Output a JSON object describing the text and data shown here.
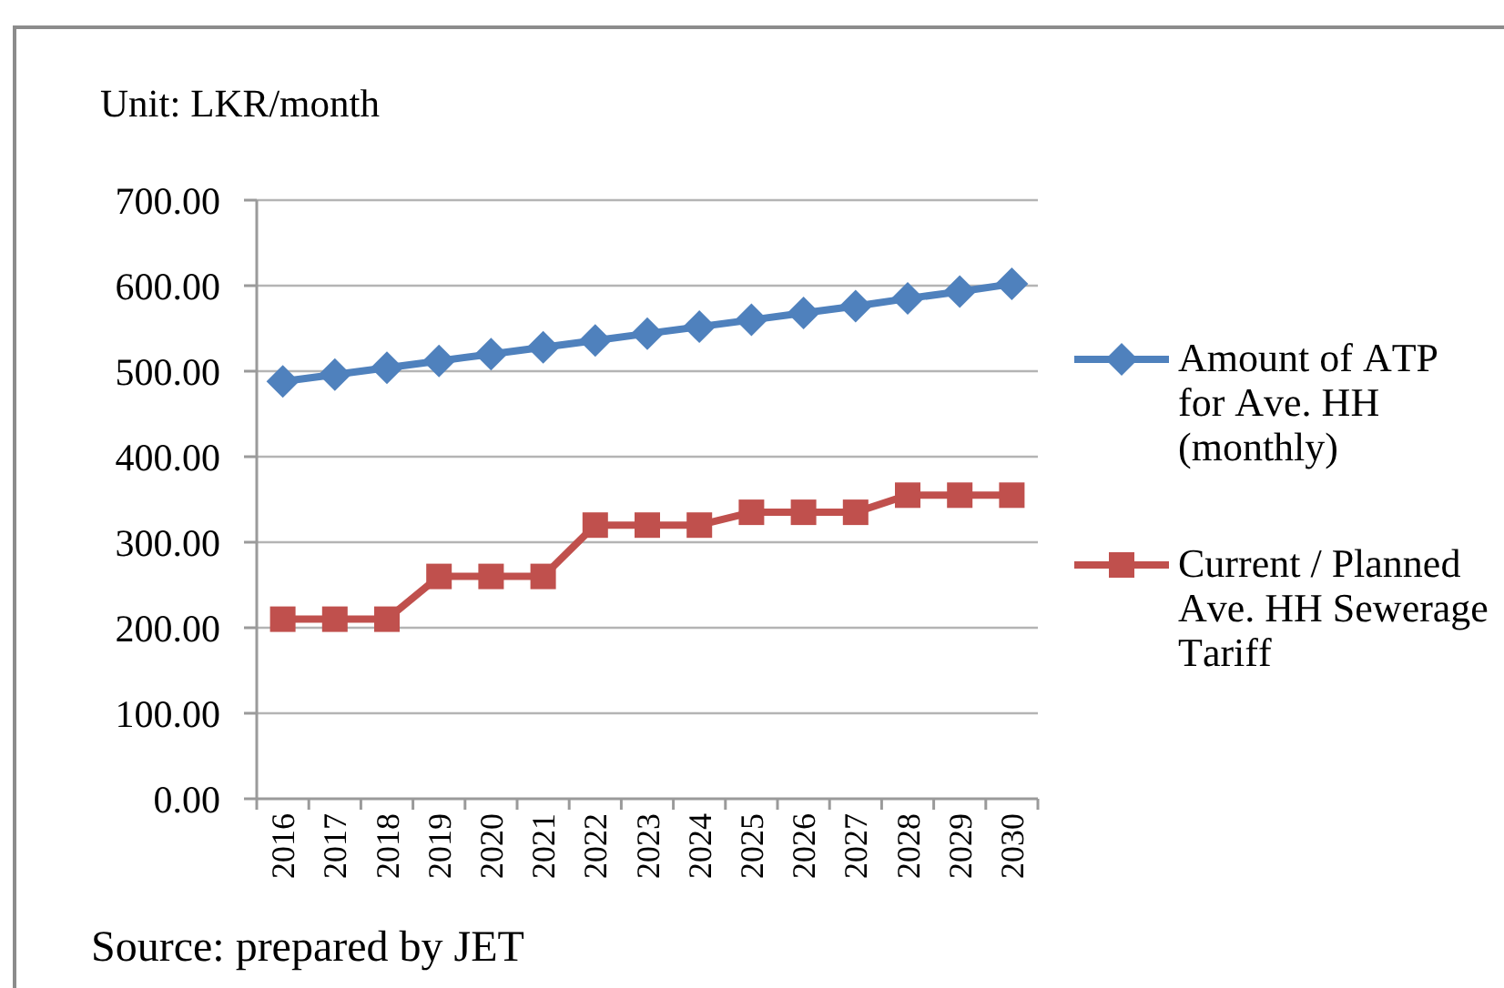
{
  "chart_data": {
    "type": "line",
    "ylabel": "Unit: LKR/month",
    "annotations": [
      "Source: prepared by JET"
    ],
    "categories": [
      "2016",
      "2017",
      "2018",
      "2019",
      "2020",
      "2021",
      "2022",
      "2023",
      "2024",
      "2025",
      "2026",
      "2027",
      "2028",
      "2029",
      "2030"
    ],
    "series": [
      {
        "name": "Amount of ATP for Ave. HH (monthly)",
        "color": "#4f81bd",
        "marker": "diamond",
        "values": [
          488,
          496,
          504,
          512,
          520,
          528,
          536,
          544,
          552,
          560,
          568,
          576,
          585,
          593,
          602
        ]
      },
      {
        "name": "Current / Planned Ave. HH Sewerage Tariff",
        "color": "#c0504d",
        "marker": "square",
        "values": [
          210,
          210,
          210,
          260,
          260,
          260,
          320,
          320,
          320,
          335,
          335,
          335,
          355,
          355,
          355
        ]
      }
    ],
    "ylim": [
      0,
      700
    ],
    "yticks": [
      {
        "value": 0,
        "label": "0.00"
      },
      {
        "value": 100,
        "label": "100.00"
      },
      {
        "value": 200,
        "label": "200.00"
      },
      {
        "value": 300,
        "label": "300.00"
      },
      {
        "value": 400,
        "label": "400.00"
      },
      {
        "value": 500,
        "label": "500.00"
      },
      {
        "value": 600,
        "label": "600.00"
      },
      {
        "value": 700,
        "label": "700.00"
      }
    ],
    "grid": "y",
    "legend": "right"
  }
}
